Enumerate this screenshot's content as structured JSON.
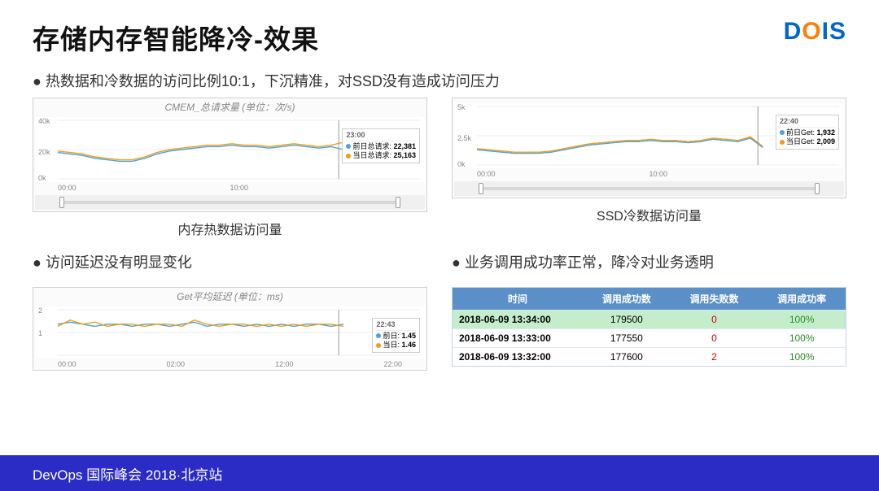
{
  "title": "存储内存智能降冷-效果",
  "logo": {
    "d": "D",
    "o": "O",
    "i": "I",
    "s": "S"
  },
  "bullets": {
    "b1": "热数据和冷数据的访问比例10:1，下沉精准，对SSD没有造成访问压力",
    "b2": "访问延迟没有明显变化",
    "b3": "业务调用成功率正常，降冷对业务透明"
  },
  "chart1": {
    "title": "CMEM_总请求量 (单位：次/s)",
    "caption": "内存热数据访问量",
    "ylabels": [
      "40k",
      "20k",
      "0k"
    ],
    "xlabels": [
      "00:00",
      "10:00",
      ""
    ],
    "legend_time": "23:00",
    "legend": [
      {
        "color": "#4aa3df",
        "label": "前日总请求:",
        "value": "22,381"
      },
      {
        "color": "#f39c12",
        "label": "当日总请求:",
        "value": "25,163"
      }
    ],
    "series": [
      {
        "color": "#4aa3df",
        "points": [
          18,
          17,
          16,
          14,
          13,
          12,
          12,
          14,
          17,
          19,
          20,
          21,
          22,
          22,
          23,
          22,
          22,
          21,
          22,
          23,
          22,
          21,
          22,
          20
        ]
      },
      {
        "color": "#f39c12",
        "points": [
          19,
          18,
          17,
          15,
          14,
          13,
          13,
          15,
          18,
          20,
          21,
          22,
          23,
          23,
          24,
          23,
          23,
          22,
          23,
          24,
          23,
          22,
          23,
          25
        ]
      }
    ],
    "ylim": [
      0,
      40
    ],
    "gridcolor": "#eee"
  },
  "chart2": {
    "title": "",
    "caption": "SSD冷数据访问量",
    "ylabels": [
      "5k",
      "2.5k",
      "0k"
    ],
    "xlabels": [
      "00:00",
      "10:00",
      ""
    ],
    "legend_time": "22:40",
    "legend": [
      {
        "color": "#4aa3df",
        "label": "前日Get:",
        "value": "1,932"
      },
      {
        "color": "#f39c12",
        "label": "当日Get:",
        "value": "2,009"
      }
    ],
    "series": [
      {
        "color": "#4aa3df",
        "points": [
          1.3,
          1.2,
          1.1,
          1.0,
          1.0,
          1.0,
          1.1,
          1.3,
          1.5,
          1.7,
          1.8,
          1.9,
          2.0,
          2.0,
          2.1,
          2.0,
          2.0,
          1.9,
          2.0,
          2.2,
          2.1,
          2.0,
          2.3,
          1.5
        ]
      },
      {
        "color": "#f39c12",
        "points": [
          1.4,
          1.3,
          1.2,
          1.1,
          1.1,
          1.1,
          1.2,
          1.4,
          1.6,
          1.8,
          1.9,
          2.0,
          2.1,
          2.1,
          2.2,
          2.1,
          2.1,
          2.0,
          2.1,
          2.3,
          2.2,
          2.1,
          2.4,
          1.6
        ]
      }
    ],
    "ylim": [
      0,
      5
    ],
    "gridcolor": "#eee"
  },
  "chart3": {
    "title": "Get平均延迟 (单位：ms)",
    "caption": "",
    "ylabels": [
      "2",
      "1",
      ""
    ],
    "xlabels": [
      "00:00",
      "02:00",
      "12:00",
      "22:00"
    ],
    "legend_time": "22:43",
    "legend": [
      {
        "color": "#4aa3df",
        "label": "前日:",
        "value": "1.45"
      },
      {
        "color": "#f39c12",
        "label": "当日:",
        "value": "1.46"
      }
    ],
    "series": [
      {
        "color": "#4aa3df",
        "points": [
          1.5,
          1.6,
          1.5,
          1.4,
          1.5,
          1.5,
          1.4,
          1.5,
          1.5,
          1.4,
          1.5,
          1.6,
          1.4,
          1.5,
          1.5,
          1.4,
          1.5,
          1.4,
          1.5,
          1.4,
          1.5,
          1.5,
          1.4,
          1.5
        ]
      },
      {
        "color": "#f39c12",
        "points": [
          1.4,
          1.7,
          1.5,
          1.6,
          1.4,
          1.5,
          1.5,
          1.4,
          1.5,
          1.5,
          1.4,
          1.7,
          1.5,
          1.4,
          1.5,
          1.5,
          1.4,
          1.5,
          1.4,
          1.5,
          1.4,
          1.5,
          1.5,
          1.4
        ]
      }
    ],
    "ylim": [
      0,
      2.2
    ],
    "gridcolor": "#eee"
  },
  "table": {
    "headers": {
      "time": "时间",
      "success": "调用成功数",
      "fail": "调用失败数",
      "rate": "调用成功率"
    },
    "rows": [
      {
        "time": "2018-06-09 13:34:00",
        "success": "179500",
        "fail": "0",
        "rate": "100%",
        "hl": true
      },
      {
        "time": "2018-06-09 13:33:00",
        "success": "177550",
        "fail": "0",
        "rate": "100%",
        "hl": false
      },
      {
        "time": "2018-06-09 13:32:00",
        "success": "177600",
        "fail": "2",
        "rate": "100%",
        "hl": false
      }
    ]
  },
  "footer": "DevOps 国际峰会 2018·北京站"
}
